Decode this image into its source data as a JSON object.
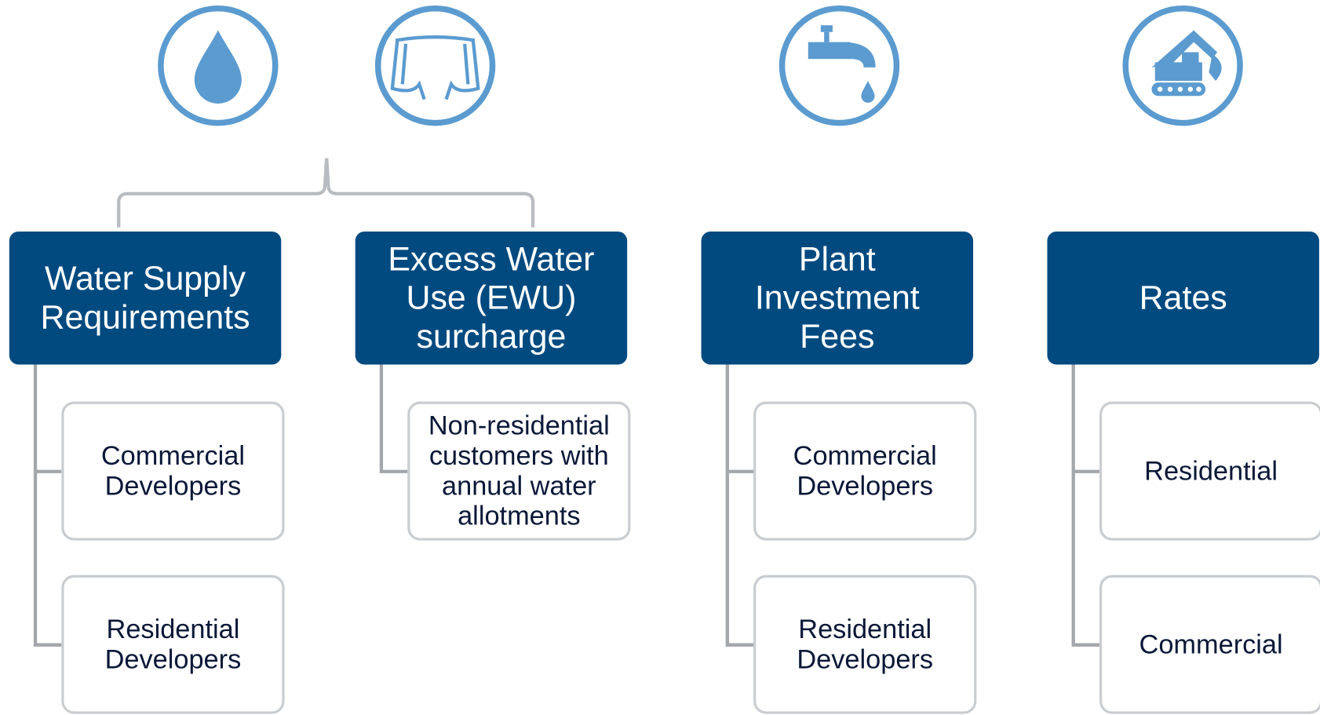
{
  "columns": [
    {
      "title": "Water Supply Requirements",
      "items": [
        "Commercial Developers",
        "Residential Developers"
      ]
    },
    {
      "title": "Excess Water Use (EWU) surcharge",
      "items": [
        "Non-residential customers with annual water allotments"
      ]
    },
    {
      "title": "Plant Investment Fees",
      "items": [
        "Commercial Developers",
        "Residential Developers"
      ]
    },
    {
      "title": "Rates",
      "items": [
        "Residential",
        "Commercial"
      ]
    }
  ]
}
